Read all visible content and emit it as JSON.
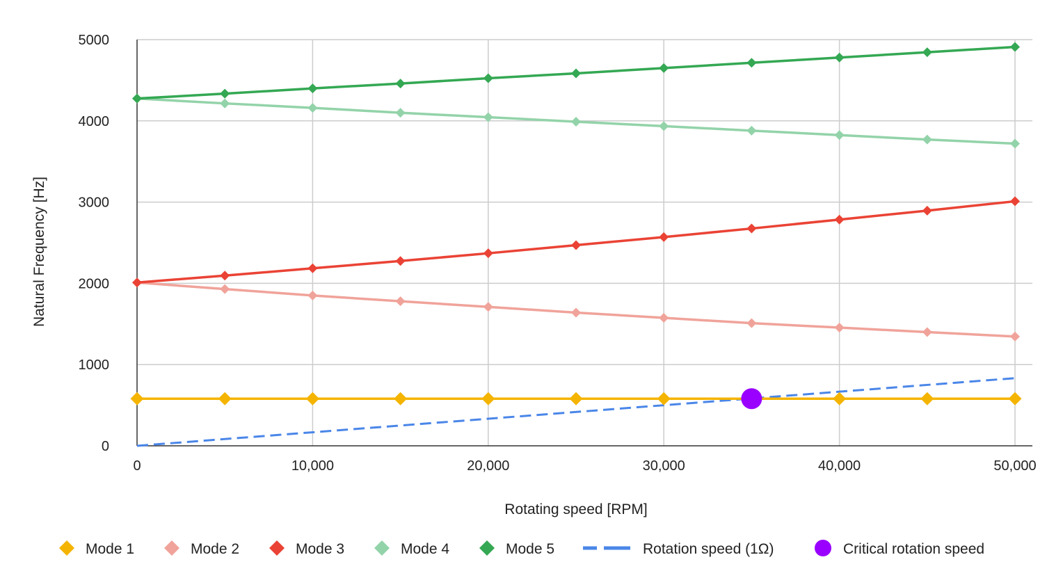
{
  "chart_data": {
    "type": "line",
    "xlabel": "Rotating speed [RPM]",
    "ylabel": "Natural Frequency [Hz]",
    "xlim": [
      0,
      50000
    ],
    "ylim": [
      0,
      5000
    ],
    "x_ticks": [
      0,
      10000,
      20000,
      30000,
      40000,
      50000
    ],
    "x_tick_labels": [
      "0",
      "10,000",
      "20,000",
      "30,000",
      "40,000",
      "50,000"
    ],
    "y_ticks": [
      0,
      1000,
      2000,
      3000,
      4000,
      5000
    ],
    "y_tick_labels": [
      "0",
      "1000",
      "2000",
      "3000",
      "4000",
      "5000"
    ],
    "grid": true,
    "legend_position": "bottom",
    "x": [
      0,
      5000,
      10000,
      15000,
      20000,
      25000,
      30000,
      35000,
      40000,
      45000,
      50000
    ],
    "series": [
      {
        "name": "Mode 1",
        "color": "#F4B400",
        "marker": "diamond",
        "values": [
          580,
          580,
          580,
          580,
          580,
          580,
          580,
          580,
          580,
          580,
          580
        ]
      },
      {
        "name": "Mode 2",
        "color": "#F0A39A",
        "marker": "diamond",
        "values": [
          2010,
          1930,
          1850,
          1780,
          1710,
          1640,
          1575,
          1510,
          1455,
          1400,
          1345
        ]
      },
      {
        "name": "Mode 3",
        "color": "#EA4335",
        "marker": "diamond",
        "values": [
          2010,
          2095,
          2185,
          2275,
          2370,
          2470,
          2570,
          2675,
          2785,
          2895,
          3010
        ]
      },
      {
        "name": "Mode 4",
        "color": "#93D3A9",
        "marker": "diamond",
        "values": [
          4275,
          4215,
          4160,
          4100,
          4045,
          3990,
          3935,
          3880,
          3825,
          3770,
          3720
        ]
      },
      {
        "name": "Mode 5",
        "color": "#34A853",
        "marker": "diamond",
        "values": [
          4275,
          4335,
          4400,
          4460,
          4525,
          4585,
          4650,
          4715,
          4780,
          4845,
          4910
        ]
      }
    ],
    "rotation_speed": {
      "name": "Rotation speed (1Ω)",
      "color": "#4A86E8",
      "style": "dashed",
      "x": [
        0,
        50000
      ],
      "values": [
        0,
        833
      ]
    },
    "critical_point": {
      "name": "Critical rotation speed",
      "color": "#9900FF",
      "x": 35000,
      "y": 580
    },
    "legend": [
      {
        "label": "Mode 1",
        "symbol": "diamond",
        "color": "#F4B400"
      },
      {
        "label": "Mode 2",
        "symbol": "diamond",
        "color": "#F0A39A"
      },
      {
        "label": "Mode 3",
        "symbol": "diamond",
        "color": "#EA4335"
      },
      {
        "label": "Mode 4",
        "symbol": "diamond",
        "color": "#93D3A9"
      },
      {
        "label": "Mode 5",
        "symbol": "diamond",
        "color": "#34A853"
      },
      {
        "label": "Rotation speed (1Ω)",
        "symbol": "dash",
        "color": "#4A86E8"
      },
      {
        "label": "Critical rotation speed",
        "symbol": "circle",
        "color": "#9900FF"
      }
    ]
  }
}
